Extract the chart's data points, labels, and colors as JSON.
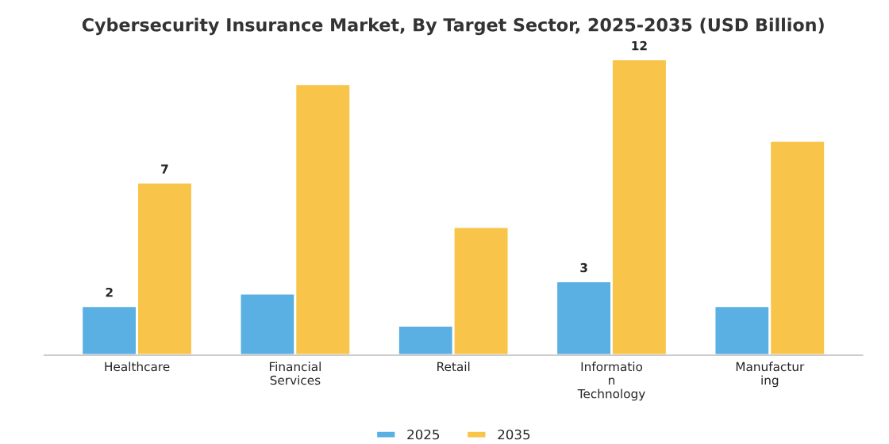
{
  "chart_data": {
    "type": "bar",
    "title": "Cybersecurity Insurance Market, By Target Sector, 2025-2035 (USD Billion)",
    "categories": [
      "Healthcare",
      "Financial\nServices",
      "Retail",
      "Informatio\nn\nTechnology",
      "Manufactur\ning"
    ],
    "series": [
      {
        "name": "2025",
        "color": "#5aafe3",
        "values": [
          2,
          2.5,
          1.2,
          3,
          2.0
        ],
        "value_labels": [
          "2",
          null,
          null,
          "3",
          null
        ]
      },
      {
        "name": "2035",
        "color": "#f8c54a",
        "values": [
          7,
          11,
          5.2,
          12,
          8.7
        ],
        "value_labels": [
          "7",
          null,
          null,
          "12",
          null
        ]
      }
    ],
    "tick_labels": "x",
    "legend": "bottom",
    "grid": false
  }
}
